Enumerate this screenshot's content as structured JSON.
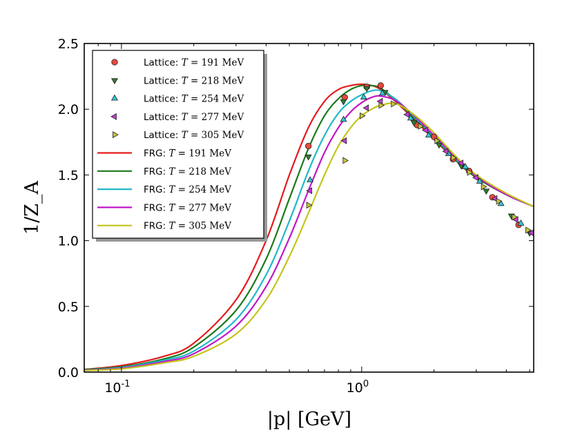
{
  "chart_data": {
    "type": "line",
    "title": "",
    "xlabel": "|p| [GeV]",
    "ylabel": "1/Z_A",
    "xscale": "log",
    "xlim": [
      0.07,
      5.2
    ],
    "ylim": [
      0.0,
      2.5
    ],
    "xticks": [
      {
        "value": 0.1,
        "base": "10",
        "exp": "-1"
      },
      {
        "value": 1.0,
        "base": "10",
        "exp": "0"
      }
    ],
    "yticks": [
      "0.0",
      "0.5",
      "1.0",
      "1.5",
      "2.0",
      "2.5"
    ],
    "legend_position": "upper-left",
    "grid": false,
    "series": [
      {
        "name": "FRG: T = 191 MeV",
        "kind": "line",
        "color": "#e41a1c",
        "legend_prefix": "FRG: ",
        "legend_math": "T",
        "legend_eq": " = 191 ",
        "legend_unit": "MeV",
        "x": [
          0.07,
          0.1,
          0.15,
          0.2,
          0.3,
          0.4,
          0.5,
          0.6,
          0.7,
          0.8,
          0.9,
          1.0,
          1.1,
          1.2,
          1.4,
          1.7,
          2.0,
          2.5,
          3.0,
          4.0,
          5.2
        ],
        "y": [
          0.02,
          0.05,
          0.12,
          0.22,
          0.55,
          1.0,
          1.5,
          1.86,
          2.06,
          2.15,
          2.18,
          2.19,
          2.18,
          2.15,
          2.05,
          1.9,
          1.77,
          1.6,
          1.48,
          1.35,
          1.26
        ]
      },
      {
        "name": "FRG: T = 218 MeV",
        "kind": "line",
        "color": "#1a7a1a",
        "legend_prefix": "FRG: ",
        "legend_math": "T",
        "legend_eq": " = 218 ",
        "legend_unit": "MeV",
        "x": [
          0.07,
          0.1,
          0.15,
          0.2,
          0.3,
          0.4,
          0.5,
          0.6,
          0.7,
          0.8,
          0.9,
          1.0,
          1.1,
          1.2,
          1.4,
          1.7,
          2.0,
          2.5,
          3.0,
          4.0,
          5.2
        ],
        "y": [
          0.02,
          0.04,
          0.1,
          0.19,
          0.47,
          0.86,
          1.32,
          1.7,
          1.95,
          2.08,
          2.15,
          2.18,
          2.18,
          2.16,
          2.06,
          1.91,
          1.78,
          1.6,
          1.48,
          1.35,
          1.26
        ]
      },
      {
        "name": "FRG: T = 254 MeV",
        "kind": "line",
        "color": "#20b8c8",
        "legend_prefix": "FRG: ",
        "legend_math": "T",
        "legend_eq": " = 254 ",
        "legend_unit": "MeV",
        "x": [
          0.07,
          0.1,
          0.15,
          0.2,
          0.3,
          0.4,
          0.5,
          0.6,
          0.7,
          0.8,
          0.9,
          1.0,
          1.1,
          1.2,
          1.4,
          1.7,
          2.0,
          2.5,
          3.0,
          4.0,
          5.2
        ],
        "y": [
          0.015,
          0.035,
          0.09,
          0.16,
          0.4,
          0.74,
          1.15,
          1.53,
          1.8,
          1.97,
          2.06,
          2.11,
          2.14,
          2.14,
          2.07,
          1.92,
          1.79,
          1.61,
          1.49,
          1.35,
          1.26
        ]
      },
      {
        "name": "FRG: T = 277 MeV",
        "kind": "line",
        "color": "#c017c8",
        "legend_prefix": "FRG: ",
        "legend_math": "T",
        "legend_eq": " = 277 ",
        "legend_unit": "MeV",
        "x": [
          0.07,
          0.1,
          0.15,
          0.2,
          0.3,
          0.4,
          0.5,
          0.6,
          0.7,
          0.8,
          0.9,
          1.0,
          1.1,
          1.2,
          1.4,
          1.7,
          2.0,
          2.5,
          3.0,
          4.0,
          5.2
        ],
        "y": [
          0.015,
          0.03,
          0.08,
          0.14,
          0.35,
          0.65,
          1.02,
          1.38,
          1.67,
          1.86,
          1.98,
          2.05,
          2.09,
          2.1,
          2.06,
          1.93,
          1.8,
          1.62,
          1.49,
          1.35,
          1.26
        ]
      },
      {
        "name": "FRG: T = 305 MeV",
        "kind": "line",
        "color": "#c4c418",
        "legend_prefix": "FRG: ",
        "legend_math": "T",
        "legend_eq": " = 305 ",
        "legend_unit": "MeV",
        "x": [
          0.07,
          0.1,
          0.15,
          0.2,
          0.3,
          0.4,
          0.5,
          0.6,
          0.7,
          0.8,
          0.9,
          1.0,
          1.1,
          1.2,
          1.4,
          1.7,
          2.0,
          2.5,
          3.0,
          4.0,
          5.2
        ],
        "y": [
          0.012,
          0.025,
          0.07,
          0.12,
          0.29,
          0.55,
          0.88,
          1.21,
          1.5,
          1.72,
          1.86,
          1.95,
          2.0,
          2.03,
          2.04,
          1.94,
          1.82,
          1.63,
          1.5,
          1.36,
          1.26
        ]
      },
      {
        "name": "Lattice: T = 191 MeV",
        "kind": "marker",
        "marker": "circle",
        "color": "#e84a3c",
        "legend_prefix": "Lattice: ",
        "legend_math": "T",
        "legend_eq": " = 191 ",
        "legend_unit": "MeV",
        "x": [
          0.6,
          0.85,
          1.05,
          1.2,
          1.7,
          2.0,
          2.4,
          2.8,
          3.5,
          4.5
        ],
        "y": [
          1.72,
          2.09,
          2.17,
          2.18,
          1.88,
          1.79,
          1.62,
          1.53,
          1.33,
          1.12
        ]
      },
      {
        "name": "Lattice: T = 218 MeV",
        "kind": "marker",
        "marker": "triangle-down",
        "color": "#2e7d2e",
        "legend_prefix": "Lattice: ",
        "legend_math": "T",
        "legend_eq": " = 218 ",
        "legend_unit": "MeV",
        "x": [
          0.6,
          0.84,
          1.05,
          1.25,
          1.65,
          2.1,
          2.6,
          3.3,
          4.2,
          5.0
        ],
        "y": [
          1.64,
          2.06,
          2.16,
          2.13,
          1.9,
          1.73,
          1.57,
          1.38,
          1.19,
          1.06
        ]
      },
      {
        "name": "Lattice: T = 254 MeV",
        "kind": "marker",
        "marker": "triangle-up",
        "color": "#35c4d4",
        "legend_prefix": "Lattice: ",
        "legend_math": "T",
        "legend_eq": " = 254 ",
        "legend_unit": "MeV",
        "x": [
          0.61,
          0.84,
          1.02,
          1.22,
          1.6,
          1.9,
          2.3,
          2.7,
          3.1,
          3.8,
          4.6
        ],
        "y": [
          1.46,
          1.92,
          2.09,
          2.12,
          1.93,
          1.8,
          1.66,
          1.56,
          1.45,
          1.28,
          1.13
        ]
      },
      {
        "name": "Lattice: T = 277 MeV",
        "kind": "marker",
        "marker": "triangle-left",
        "color": "#c43ad0",
        "legend_prefix": "Lattice: ",
        "legend_math": "T",
        "legend_eq": " = 277 ",
        "legend_unit": "MeV",
        "x": [
          0.61,
          0.85,
          1.05,
          1.2,
          1.55,
          1.85,
          2.25,
          2.6,
          3.0,
          3.6,
          4.4,
          5.1
        ],
        "y": [
          1.38,
          1.76,
          2.01,
          2.06,
          1.96,
          1.84,
          1.68,
          1.59,
          1.48,
          1.32,
          1.16,
          1.06
        ]
      },
      {
        "name": "Lattice: T = 305 MeV",
        "kind": "marker",
        "marker": "triangle-right",
        "color": "#c8c43a",
        "legend_prefix": "Lattice: ",
        "legend_math": "T",
        "legend_eq": " = 305 ",
        "legend_unit": "MeV",
        "x": [
          0.6,
          0.85,
          1.0,
          1.2,
          1.35,
          1.75,
          2.05,
          2.4,
          2.8,
          3.2,
          3.7,
          4.3,
          4.9
        ],
        "y": [
          1.27,
          1.61,
          1.95,
          2.03,
          2.04,
          1.87,
          1.76,
          1.63,
          1.52,
          1.41,
          1.3,
          1.18,
          1.08
        ]
      }
    ]
  }
}
